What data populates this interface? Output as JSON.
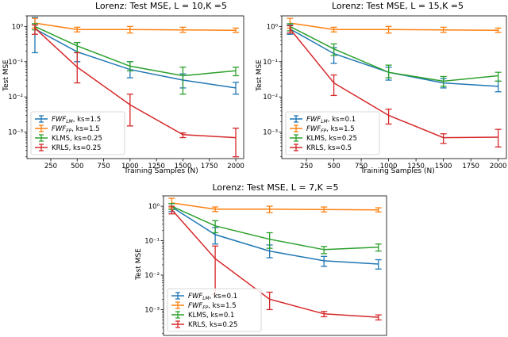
{
  "chart_data": [
    {
      "type": "line",
      "title": "Lorenz: Test MSE, L = 10,K =5",
      "xlabel": "Training Samples (N)",
      "ylabel": "Test MSE",
      "yscale": "log",
      "xlim": [
        25,
        2075
      ],
      "ylim": [
        0.0001778,
        2.0
      ],
      "xticks": [
        250,
        500,
        750,
        1000,
        1250,
        1500,
        1750,
        2000
      ],
      "yticks": [
        {
          "value": 1,
          "label": "10⁰"
        },
        {
          "value": 0.1,
          "label": "10⁻¹"
        },
        {
          "value": 0.01,
          "label": "10⁻²"
        },
        {
          "value": 0.001,
          "label": "10⁻³"
        }
      ],
      "legend_position": "lower-left",
      "x": [
        100,
        500,
        1000,
        1500,
        2000
      ],
      "series": [
        {
          "name": "FWF_LM",
          "legend_main": "FWF",
          "legend_sub": "LM",
          "legend_rest": ", ks=1.5",
          "color": "#1f77b4",
          "values": [
            0.85,
            0.19,
            0.06,
            0.03,
            0.018
          ],
          "err_low": [
            0.18,
            0.1,
            0.035,
            0.018,
            0.012
          ],
          "err_high": [
            1.8,
            0.35,
            0.1,
            0.045,
            0.026
          ]
        },
        {
          "name": "FWF_FP",
          "legend_main": "FWF",
          "legend_sub": "FP",
          "legend_rest": ", ks=1.5",
          "color": "#ff7f0e",
          "values": [
            1.25,
            0.82,
            0.82,
            0.8,
            0.78
          ],
          "err_low": [
            0.9,
            0.7,
            0.65,
            0.68,
            0.68
          ],
          "err_high": [
            1.7,
            0.95,
            1.0,
            0.95,
            0.9
          ]
        },
        {
          "name": "KLMS",
          "legend_main": "KLMS",
          "legend_sub": "",
          "legend_rest": ", ks=0.25",
          "color": "#2ca02c",
          "values": [
            1.0,
            0.28,
            0.075,
            0.04,
            0.055
          ],
          "err_low": [
            0.8,
            0.18,
            0.055,
            0.012,
            0.04
          ],
          "err_high": [
            1.2,
            0.35,
            0.1,
            0.07,
            0.07
          ]
        },
        {
          "name": "KRLS",
          "legend_main": "KRLS",
          "legend_sub": "",
          "legend_rest": ", ks=0.25",
          "color": "#d62728",
          "values": [
            0.9,
            0.07,
            0.006,
            0.00085,
            0.0007
          ],
          "err_low": [
            0.6,
            0.025,
            0.0015,
            0.0007,
            0.0002
          ],
          "err_high": [
            1.1,
            0.18,
            0.012,
            0.00095,
            0.0013
          ]
        }
      ]
    },
    {
      "type": "line",
      "title": "Lorenz: Test MSE, L = 15,K =5",
      "xlabel": "Training Samples (N)",
      "ylabel": "Test MSE",
      "yscale": "log",
      "xlim": [
        25,
        2075
      ],
      "ylim": [
        0.0001778,
        2.0
      ],
      "xticks": [
        250,
        500,
        750,
        1000,
        1250,
        1500,
        1750,
        2000
      ],
      "yticks": [
        {
          "value": 1,
          "label": "10⁰"
        },
        {
          "value": 0.1,
          "label": "10⁻¹"
        },
        {
          "value": 0.01,
          "label": "10⁻²"
        },
        {
          "value": 0.001,
          "label": "10⁻³"
        }
      ],
      "legend_position": "lower-left",
      "x": [
        100,
        500,
        1000,
        1500,
        2000
      ],
      "series": [
        {
          "name": "FWF_LM",
          "legend_main": "FWF",
          "legend_sub": "LM",
          "legend_rest": ", ks=0.1",
          "color": "#1f77b4",
          "values": [
            0.85,
            0.17,
            0.05,
            0.025,
            0.02
          ],
          "err_low": [
            0.6,
            0.09,
            0.03,
            0.018,
            0.014
          ],
          "err_high": [
            1.1,
            0.25,
            0.07,
            0.033,
            0.028
          ]
        },
        {
          "name": "FWF_FP",
          "legend_main": "FWF",
          "legend_sub": "FP",
          "legend_rest": ", ks=1.5",
          "color": "#ff7f0e",
          "values": [
            1.25,
            0.82,
            0.82,
            0.8,
            0.78
          ],
          "err_low": [
            0.9,
            0.7,
            0.65,
            0.68,
            0.68
          ],
          "err_high": [
            1.7,
            0.95,
            1.0,
            0.95,
            0.9
          ]
        },
        {
          "name": "KLMS",
          "legend_main": "KLMS",
          "legend_sub": "",
          "legend_rest": ", ks=0.25",
          "color": "#2ca02c",
          "values": [
            1.0,
            0.23,
            0.05,
            0.028,
            0.04
          ],
          "err_low": [
            0.75,
            0.15,
            0.035,
            0.02,
            0.028
          ],
          "err_high": [
            1.2,
            0.32,
            0.08,
            0.038,
            0.05
          ]
        },
        {
          "name": "KRLS",
          "legend_main": "KRLS",
          "legend_sub": "",
          "legend_rest": ", ks=0.5",
          "color": "#d62728",
          "values": [
            0.85,
            0.025,
            0.003,
            0.0007,
            0.00072
          ],
          "err_low": [
            0.65,
            0.011,
            0.0017,
            0.00048,
            0.00038
          ],
          "err_high": [
            1.05,
            0.042,
            0.0045,
            0.0009,
            0.0012
          ]
        }
      ]
    },
    {
      "type": "line",
      "title": "Lorenz: Test MSE, L = 7,K =5",
      "xlabel": "",
      "ylabel": "Test MSE",
      "yscale": "log",
      "xlim": [
        25,
        2075
      ],
      "ylim": [
        0.0001778,
        2.0
      ],
      "xticks": [],
      "yticks": [
        {
          "value": 1,
          "label": "10⁰"
        },
        {
          "value": 0.1,
          "label": "10⁻¹"
        },
        {
          "value": 0.01,
          "label": "10⁻²"
        },
        {
          "value": 0.001,
          "label": "10⁻³"
        }
      ],
      "legend_position": "lower-left",
      "x": [
        100,
        500,
        1000,
        1500,
        2000
      ],
      "series": [
        {
          "name": "FWF_LM",
          "legend_main": "FWF",
          "legend_sub": "LM",
          "legend_rest": ", ks=0.1",
          "color": "#1f77b4",
          "values": [
            0.95,
            0.15,
            0.05,
            0.026,
            0.021
          ],
          "err_low": [
            0.7,
            0.08,
            0.032,
            0.018,
            0.015
          ],
          "err_high": [
            1.2,
            0.24,
            0.075,
            0.035,
            0.028
          ]
        },
        {
          "name": "FWF_FP",
          "legend_main": "FWF",
          "legend_sub": "FP",
          "legend_rest": ", ks=1.5",
          "color": "#ff7f0e",
          "values": [
            1.25,
            0.82,
            0.82,
            0.8,
            0.78
          ],
          "err_low": [
            0.9,
            0.7,
            0.65,
            0.68,
            0.68
          ],
          "err_high": [
            1.7,
            0.95,
            1.0,
            0.95,
            0.9
          ]
        },
        {
          "name": "KLMS",
          "legend_main": "KLMS",
          "legend_sub": "",
          "legend_rest": ", ks=0.1",
          "color": "#2ca02c",
          "values": [
            1.0,
            0.27,
            0.11,
            0.055,
            0.065
          ],
          "err_low": [
            0.8,
            0.17,
            0.06,
            0.042,
            0.05
          ],
          "err_high": [
            1.2,
            0.38,
            0.17,
            0.068,
            0.08
          ]
        },
        {
          "name": "KRLS",
          "legend_main": "KRLS",
          "legend_sub": "",
          "legend_rest": ", ks=0.25",
          "color": "#d62728",
          "values": [
            0.8,
            0.03,
            0.002,
            0.00075,
            0.0006
          ],
          "err_low": [
            0.6,
            0.0028,
            0.001,
            0.00062,
            0.0005
          ],
          "err_high": [
            1.0,
            0.07,
            0.0032,
            0.00088,
            0.0007
          ]
        }
      ]
    }
  ]
}
